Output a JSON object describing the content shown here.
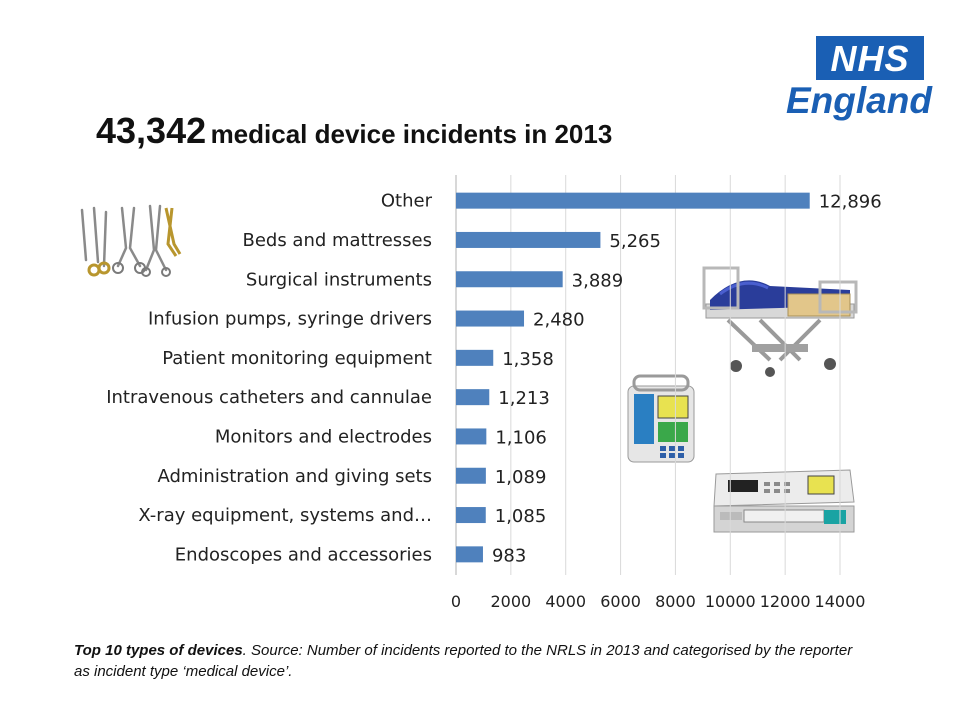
{
  "logo": {
    "org": "NHS",
    "region": "England"
  },
  "title": {
    "number": "43,342",
    "rest": "medical device incidents in 2013"
  },
  "caption": {
    "bold": "Top 10 types of devices",
    "text": ". Source: Number of incidents reported to the NRLS in 2013 and categorised by the reporter as incident type ‘medical device’."
  },
  "pictures": {
    "instruments": "surgical-instruments-photo",
    "bed": "hospital-bed-photo",
    "pump": "infusion-pump-photo",
    "syringe": "syringe-driver-photo"
  },
  "chart_data": {
    "type": "bar",
    "orientation": "horizontal",
    "categories": [
      "Other",
      "Beds and mattresses",
      "Surgical instruments",
      "Infusion pumps, syringe drivers",
      "Patient monitoring equipment",
      "Intravenous catheters and cannulae",
      "Monitors and electrodes",
      "Administration and giving sets",
      "X-ray equipment, systems and…",
      "Endoscopes and accessories"
    ],
    "values": [
      12896,
      5265,
      3889,
      2480,
      1358,
      1213,
      1106,
      1089,
      1085,
      983
    ],
    "value_labels": [
      "12,896",
      "5,265",
      "3,889",
      "2,480",
      "1,358",
      "1,213",
      "1,106",
      "1,089",
      "1,085",
      "983"
    ],
    "x_ticks": [
      "0",
      "2000",
      "4000",
      "6000",
      "8000",
      "10000",
      "12000",
      "14000"
    ],
    "xlim": [
      0,
      14000
    ],
    "grid": true,
    "bar_color": "#4f81bd"
  }
}
